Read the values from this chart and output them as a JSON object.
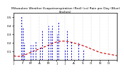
{
  "title": "Milwaukee Weather Evapotranspiration (Red) (vs) Rain per Day (Blue) (Inches)",
  "title_fontsize": 3.2,
  "background_color": "#ffffff",
  "grid_color": "#bbbbbb",
  "et_color": "#cc0000",
  "rain_color": "#0000cc",
  "ylim": [
    0.0,
    0.55
  ],
  "xlim": [
    0,
    365
  ],
  "month_ticks": [
    0,
    31,
    59,
    90,
    120,
    151,
    181,
    212,
    243,
    273,
    304,
    334,
    365
  ],
  "month_labels": [
    "J",
    "F",
    "M",
    "A",
    "M",
    "J",
    "J",
    "A",
    "S",
    "O",
    "N",
    "D",
    ""
  ],
  "ytick_vals": [
    0.1,
    0.2,
    0.3,
    0.4,
    0.5
  ],
  "et_smooth": true,
  "rain_spikes": [
    [
      28,
      0.52
    ],
    [
      33,
      0.38
    ],
    [
      38,
      0.2
    ],
    [
      60,
      0.18
    ],
    [
      66,
      0.18
    ],
    [
      78,
      0.22
    ],
    [
      93,
      0.15
    ],
    [
      99,
      0.35
    ],
    [
      123,
      0.4
    ],
    [
      130,
      0.35
    ],
    [
      136,
      0.4
    ],
    [
      152,
      0.3
    ],
    [
      158,
      0.45
    ],
    [
      187,
      0.35
    ],
    [
      203,
      0.22
    ],
    [
      229,
      0.2
    ],
    [
      181,
      0.12
    ],
    [
      245,
      0.12
    ]
  ],
  "et_curve": [
    [
      0,
      0.05
    ],
    [
      30,
      0.05
    ],
    [
      60,
      0.09
    ],
    [
      90,
      0.13
    ],
    [
      120,
      0.17
    ],
    [
      150,
      0.21
    ],
    [
      181,
      0.22
    ],
    [
      212,
      0.2
    ],
    [
      243,
      0.17
    ],
    [
      273,
      0.13
    ],
    [
      304,
      0.09
    ],
    [
      334,
      0.07
    ],
    [
      365,
      0.05
    ]
  ]
}
